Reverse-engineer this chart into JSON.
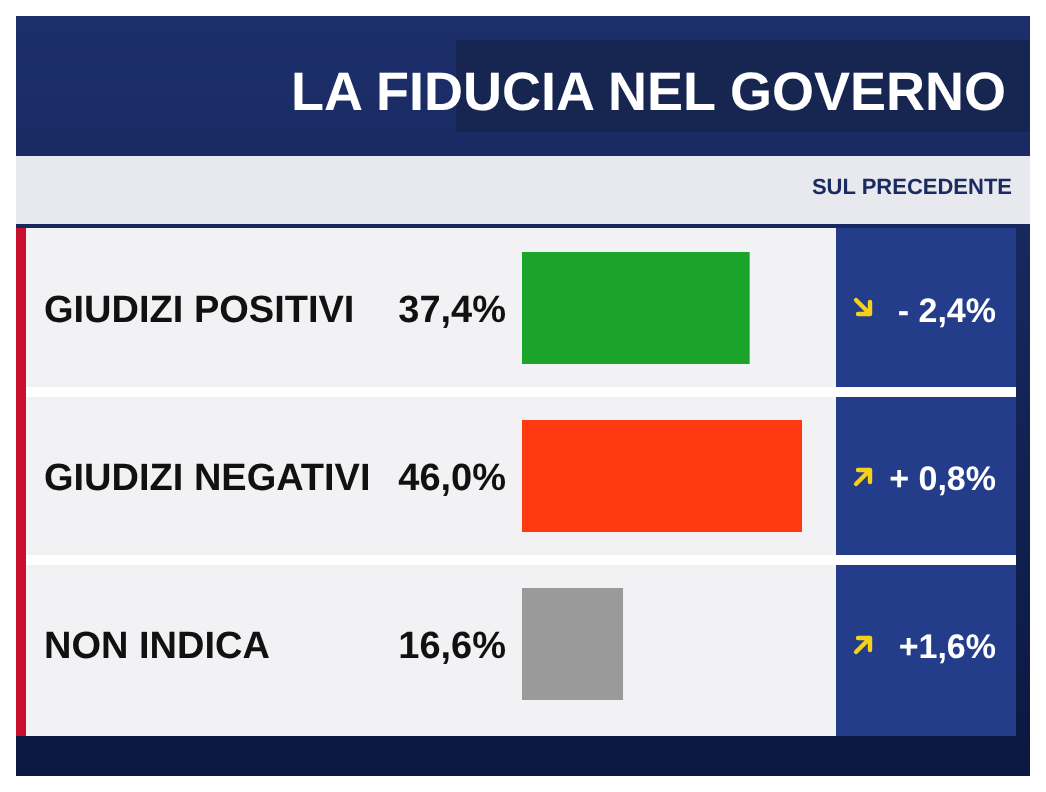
{
  "chart_data": {
    "type": "bar",
    "orientation": "horizontal",
    "title": "LA FIDUCIA NEL GOVERNO",
    "categories": [
      "GIUDIZI POSITIVI",
      "GIUDIZI NEGATIVI",
      "NON INDICA"
    ],
    "values": [
      37.4,
      46.0,
      16.6
    ],
    "colors": [
      "#1aa52a",
      "#ff3a12",
      "#9a9a9a"
    ],
    "value_labels": [
      "37,4%",
      "46,0%",
      "16,6%"
    ],
    "annotations": [
      "SUL PRECEDENTE",
      "- 2,4%",
      "+ 0,8%",
      "+1,6%"
    ]
  }
}
